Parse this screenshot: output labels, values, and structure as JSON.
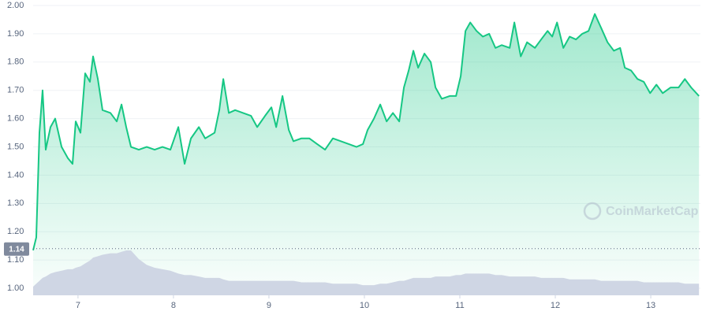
{
  "chart_data": {
    "type": "area",
    "x": [
      6.53,
      6.563,
      6.596,
      6.629,
      6.662,
      6.712,
      6.761,
      6.828,
      6.894,
      6.943,
      6.976,
      7.026,
      7.075,
      7.125,
      7.158,
      7.208,
      7.257,
      7.34,
      7.406,
      7.456,
      7.505,
      7.555,
      7.637,
      7.72,
      7.803,
      7.885,
      7.968,
      8.051,
      8.117,
      8.183,
      8.266,
      8.332,
      8.431,
      8.48,
      8.522,
      8.58,
      8.646,
      8.729,
      8.812,
      8.877,
      8.96,
      9.026,
      9.076,
      9.142,
      9.208,
      9.257,
      9.34,
      9.423,
      9.505,
      9.588,
      9.67,
      9.753,
      9.836,
      9.918,
      9.985,
      10.034,
      10.1,
      10.166,
      10.233,
      10.299,
      10.365,
      10.414,
      10.464,
      10.513,
      10.563,
      10.629,
      10.695,
      10.745,
      10.811,
      10.894,
      10.96,
      11.009,
      11.059,
      11.109,
      11.175,
      11.241,
      11.307,
      11.373,
      11.439,
      11.522,
      11.571,
      11.638,
      11.704,
      11.786,
      11.852,
      11.919,
      11.968,
      12.018,
      12.084,
      12.15,
      12.216,
      12.282,
      12.348,
      12.414,
      12.481,
      12.547,
      12.613,
      12.679,
      12.728,
      12.794,
      12.861,
      12.927,
      12.993,
      13.059,
      13.125,
      13.208,
      13.291,
      13.357,
      13.423,
      13.505
    ],
    "series": [
      {
        "color": "#16c784",
        "values": [
          1.134,
          1.18,
          1.55,
          1.7,
          1.49,
          1.57,
          1.6,
          1.5,
          1.46,
          1.44,
          1.59,
          1.55,
          1.76,
          1.73,
          1.82,
          1.74,
          1.63,
          1.62,
          1.59,
          1.65,
          1.57,
          1.5,
          1.49,
          1.5,
          1.49,
          1.5,
          1.49,
          1.57,
          1.44,
          1.53,
          1.57,
          1.53,
          1.55,
          1.63,
          1.74,
          1.62,
          1.63,
          1.62,
          1.61,
          1.57,
          1.61,
          1.64,
          1.57,
          1.68,
          1.56,
          1.52,
          1.53,
          1.53,
          1.51,
          1.49,
          1.53,
          1.52,
          1.51,
          1.5,
          1.51,
          1.56,
          1.6,
          1.65,
          1.59,
          1.62,
          1.59,
          1.71,
          1.77,
          1.84,
          1.78,
          1.83,
          1.8,
          1.71,
          1.67,
          1.68,
          1.68,
          1.75,
          1.91,
          1.94,
          1.91,
          1.89,
          1.9,
          1.85,
          1.86,
          1.85,
          1.94,
          1.82,
          1.87,
          1.85,
          1.88,
          1.91,
          1.89,
          1.94,
          1.85,
          1.89,
          1.88,
          1.9,
          1.91,
          1.97,
          1.92,
          1.87,
          1.84,
          1.85,
          1.78,
          1.77,
          1.74,
          1.73,
          1.69,
          1.72,
          1.69,
          1.71,
          1.71,
          1.74,
          1.71,
          1.68
        ]
      },
      {
        "color": "#cfd6e4",
        "axis": "y2",
        "values": [
          3,
          4,
          5,
          6,
          6.5,
          7.5,
          8,
          8.5,
          9,
          9,
          9.5,
          10,
          11,
          12,
          13,
          13.5,
          14,
          14.5,
          14.5,
          15,
          15.5,
          15.5,
          12.5,
          10.5,
          9.5,
          9,
          8.5,
          7.5,
          7,
          7,
          6.5,
          6,
          6,
          6,
          5.5,
          5,
          5,
          5,
          5,
          5,
          5,
          5,
          5,
          5,
          5,
          5,
          4.5,
          4.5,
          4.5,
          4.5,
          4,
          4,
          4,
          4,
          3.5,
          3.5,
          3.5,
          4,
          4,
          4.5,
          5,
          5,
          5.5,
          6,
          6,
          6,
          6,
          6.5,
          6.5,
          6.5,
          7,
          7,
          7.5,
          7.5,
          7.5,
          7.5,
          7.5,
          7,
          7,
          6.5,
          6.5,
          6.5,
          6.5,
          6.5,
          6,
          6,
          6,
          6,
          6,
          5.5,
          5.5,
          5.5,
          5.5,
          5.5,
          5,
          5,
          5,
          5,
          5,
          5,
          5,
          4.5,
          4.5,
          4.5,
          4.5,
          4.5,
          4.5,
          4,
          4,
          4
        ]
      }
    ],
    "xlim": [
      6.53,
      13.52
    ],
    "xticks": [
      7,
      8,
      9,
      10,
      11,
      12,
      13
    ],
    "ylim": [
      0.975,
      2.0
    ],
    "yticks": [
      {
        "value": 1,
        "label": "1.00"
      },
      {
        "value": 1.1,
        "label": "1.10"
      },
      {
        "value": 1.2,
        "label": "1.20"
      },
      {
        "value": 1.3,
        "label": "1.30"
      },
      {
        "value": 1.4,
        "label": "1.40"
      },
      {
        "value": 1.5,
        "label": "1.50"
      },
      {
        "value": 1.6,
        "label": "1.60"
      },
      {
        "value": 1.7,
        "label": "1.70"
      },
      {
        "value": 1.8,
        "label": "1.80"
      },
      {
        "value": 1.9,
        "label": "1.90"
      },
      {
        "value": 2,
        "label": "2.00"
      }
    ],
    "y2lim": [
      0,
      100
    ],
    "grid": true,
    "open_price": 1.14,
    "watermark": "CoinMarketCap"
  }
}
